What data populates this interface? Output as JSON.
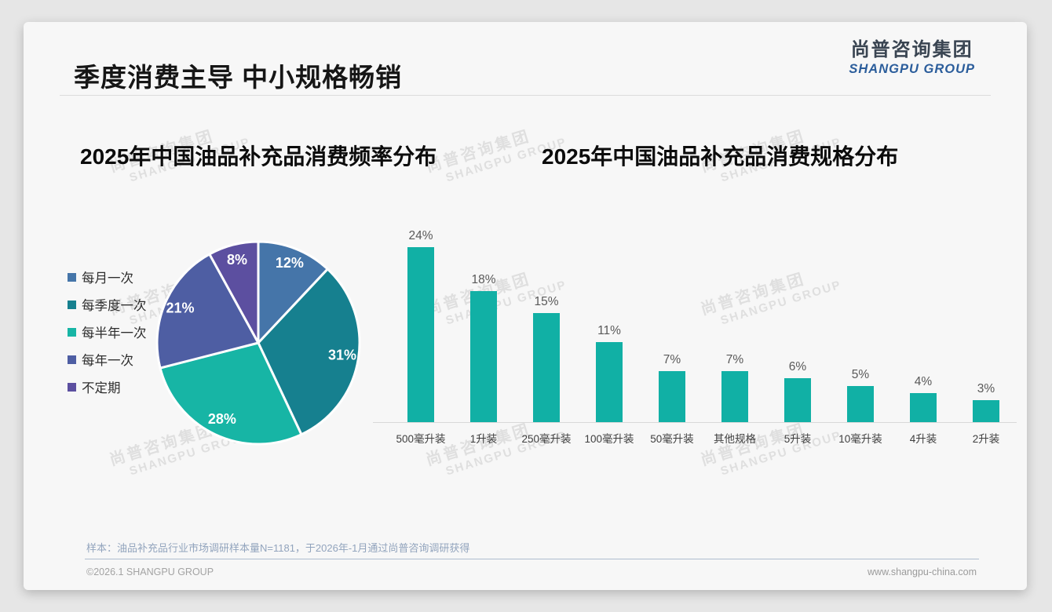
{
  "page_title": "季度消费主导 中小规格畅销",
  "logo": {
    "name_cn": "尚普咨询集团",
    "name_en": "SHANGPU GROUP"
  },
  "watermark": {
    "line1": "尚普咨询集团",
    "line2": "SHANGPU GROUP"
  },
  "chart_data": [
    {
      "type": "pie",
      "title": "2025年中国油品补充品消费频率分布",
      "labels": [
        "每月一次",
        "每季度一次",
        "每半年一次",
        "每年一次",
        "不定期"
      ],
      "values": [
        12,
        31,
        28,
        21,
        8
      ],
      "unit": "%",
      "colors": [
        "#4575a9",
        "#16808f",
        "#17b5a5",
        "#4e5ea3",
        "#5c4fa0"
      ],
      "slice_border_color": "#ffffff",
      "label_format": "percent-inside-white",
      "legend_position": "left",
      "start_angle_deg": 0,
      "direction": "clockwise"
    },
    {
      "type": "bar",
      "title": "2025年中国油品补充品消费规格分布",
      "categories": [
        "500毫升装",
        "1升装",
        "250毫升装",
        "100毫升装",
        "50毫升装",
        "其他规格",
        "5升装",
        "10毫升装",
        "4升装",
        "2升装"
      ],
      "values": [
        24,
        18,
        15,
        11,
        7,
        7,
        6,
        5,
        4,
        3
      ],
      "unit": "%",
      "bar_color": "#11b0a5",
      "value_label_color": "#595959",
      "ylim": [
        0,
        26
      ],
      "grid": false,
      "axis_line_color": "#d9d9d9"
    }
  ],
  "footer": {
    "sample_note": "样本：油品补充品行业市场调研样本量N=1181，于2026年-1月通过尚普咨询调研获得",
    "copyright": "©2026.1 SHANGPU GROUP",
    "website": "www.shangpu-china.com"
  }
}
